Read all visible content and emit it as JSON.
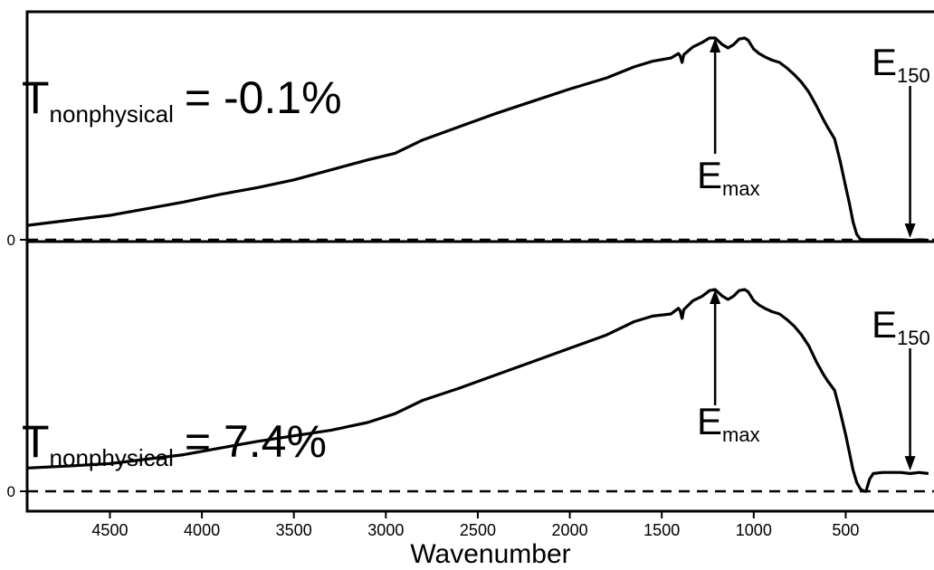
{
  "chart_data": [
    {
      "type": "line",
      "panel": "top",
      "annotation": {
        "T_main": "T",
        "T_sub": "nonphysical",
        "T_value": "= -0.1%"
      },
      "markers": {
        "emax": {
          "main": "E",
          "sub": "max",
          "x": 1210
        },
        "e150": {
          "main": "E",
          "sub": "150",
          "x": 150
        }
      },
      "zero_label": "0",
      "baseline": 0,
      "ylim": [
        -0.03,
        1.06
      ],
      "series": [
        {
          "x": [
            4950,
            4700,
            4500,
            4300,
            4100,
            3900,
            3700,
            3500,
            3300,
            3100,
            2950,
            2800,
            2600,
            2400,
            2200,
            2000,
            1800,
            1650,
            1550,
            1450,
            1410,
            1400,
            1390,
            1380,
            1330,
            1280,
            1240,
            1210,
            1170,
            1140,
            1110,
            1080,
            1050,
            1030,
            1000,
            970,
            940,
            900,
            860,
            820,
            780,
            740,
            700,
            660,
            620,
            600,
            560,
            530,
            500,
            480,
            460,
            440,
            420,
            400,
            380,
            300,
            200,
            150,
            100,
            50
          ],
          "y": [
            0.065,
            0.09,
            0.11,
            0.14,
            0.17,
            0.205,
            0.235,
            0.27,
            0.315,
            0.36,
            0.39,
            0.45,
            0.51,
            0.57,
            0.625,
            0.68,
            0.73,
            0.78,
            0.805,
            0.82,
            0.84,
            0.83,
            0.8,
            0.835,
            0.87,
            0.89,
            0.91,
            0.91,
            0.88,
            0.865,
            0.88,
            0.905,
            0.91,
            0.9,
            0.86,
            0.84,
            0.825,
            0.81,
            0.8,
            0.775,
            0.745,
            0.71,
            0.665,
            0.605,
            0.54,
            0.51,
            0.455,
            0.355,
            0.24,
            0.165,
            0.08,
            0.025,
            0.002,
            0.0,
            0.0,
            0.0,
            0.0,
            -0.003,
            0.0,
            -0.002
          ]
        }
      ]
    },
    {
      "type": "line",
      "panel": "bottom",
      "annotation": {
        "T_main": "T",
        "T_sub": "nonphysical",
        "T_value": "= 7.4%"
      },
      "markers": {
        "emax": {
          "main": "E",
          "sub": "max",
          "x": 1210
        },
        "e150": {
          "main": "E",
          "sub": "150",
          "x": 150
        }
      },
      "zero_label": "0",
      "baseline": 0,
      "ylim": [
        -0.03,
        1.06
      ],
      "series": [
        {
          "x": [
            4950,
            4700,
            4500,
            4300,
            4100,
            3900,
            3700,
            3500,
            3300,
            3100,
            2950,
            2800,
            2600,
            2400,
            2200,
            2000,
            1800,
            1650,
            1550,
            1450,
            1410,
            1400,
            1390,
            1380,
            1330,
            1280,
            1240,
            1210,
            1170,
            1140,
            1110,
            1080,
            1050,
            1030,
            1000,
            970,
            940,
            900,
            860,
            820,
            780,
            740,
            700,
            660,
            620,
            600,
            560,
            530,
            500,
            480,
            460,
            440,
            420,
            400,
            390,
            370,
            350,
            300,
            200,
            150,
            100,
            50
          ],
          "y": [
            0.105,
            0.115,
            0.125,
            0.145,
            0.165,
            0.195,
            0.225,
            0.25,
            0.275,
            0.31,
            0.35,
            0.41,
            0.465,
            0.525,
            0.585,
            0.645,
            0.705,
            0.765,
            0.79,
            0.8,
            0.825,
            0.815,
            0.78,
            0.82,
            0.86,
            0.88,
            0.905,
            0.91,
            0.88,
            0.865,
            0.88,
            0.905,
            0.91,
            0.9,
            0.86,
            0.84,
            0.825,
            0.81,
            0.8,
            0.775,
            0.745,
            0.705,
            0.655,
            0.585,
            0.525,
            0.5,
            0.455,
            0.36,
            0.255,
            0.175,
            0.095,
            0.04,
            0.01,
            0.0,
            0.0,
            0.055,
            0.08,
            0.085,
            0.085,
            0.08,
            0.085,
            0.08
          ]
        }
      ]
    }
  ],
  "x_axis": {
    "label": "Wavenumber",
    "xlim": [
      4950,
      20
    ],
    "reversed": true,
    "ticks": [
      4500,
      4000,
      3500,
      3000,
      2500,
      2000,
      1500,
      1000,
      500
    ]
  }
}
